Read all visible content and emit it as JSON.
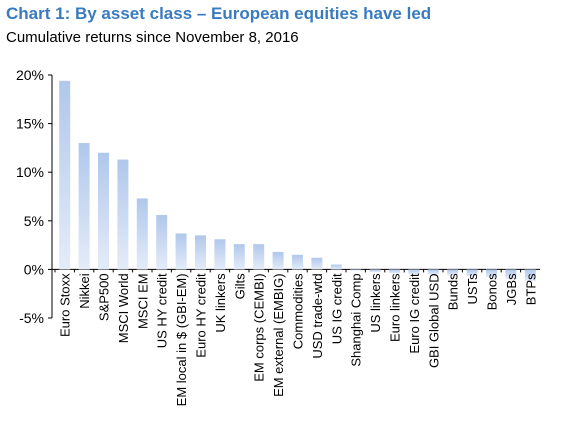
{
  "chart_data": {
    "type": "bar",
    "title": "Chart 1: By asset class – European equities have led",
    "subtitle": "Cumulative returns since November 8, 2016",
    "categories": [
      "Euro Stoxx",
      "Nikkei",
      "S&P500",
      "MSCI World",
      "MSCI EM",
      "US HY credit",
      "EM local in $ (GBI-EM)",
      "Euro HY credit",
      "UK linkers",
      "Gilts",
      "EM corps (CEMBI)",
      "EM external (EMBIG)",
      "Commodities",
      "USD trade-wtd",
      "US IG credit",
      "Shanghai Comp",
      "US linkers",
      "Euro linkers",
      "Euro IG credit",
      "GBI Global USD",
      "Bunds",
      "USTs",
      "Bonos",
      "JGBs",
      "BTPs"
    ],
    "values": [
      19.4,
      13.0,
      12.0,
      11.3,
      7.3,
      5.6,
      3.7,
      3.5,
      3.1,
      2.6,
      2.6,
      1.8,
      1.5,
      1.2,
      0.5,
      -0.1,
      -0.3,
      -0.4,
      -0.5,
      -0.5,
      -0.6,
      -0.7,
      -0.8,
      -1.0,
      -1.2
    ],
    "ylim": [
      -5,
      20
    ],
    "yticks": [
      "-5%",
      "0%",
      "5%",
      "10%",
      "15%",
      "20%"
    ],
    "grid": false,
    "bar_color_top": "#b0c7ec",
    "bar_color_bottom": "#e4ecf8"
  }
}
